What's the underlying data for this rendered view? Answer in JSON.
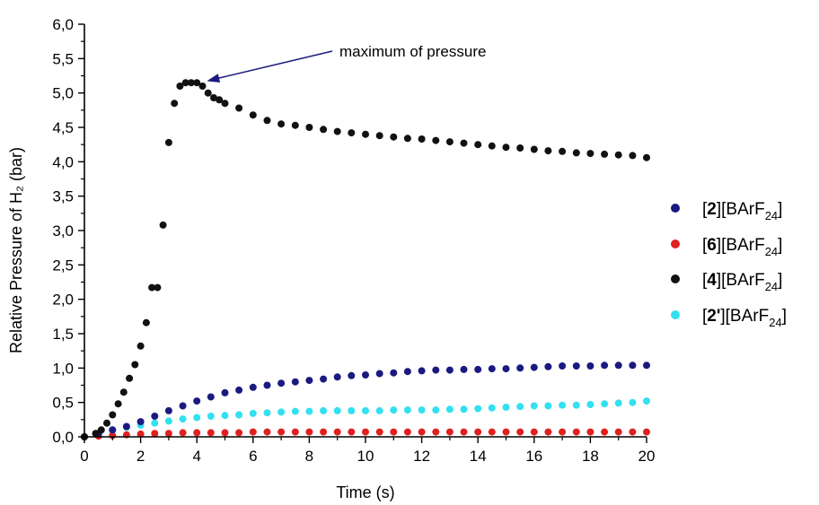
{
  "chart_data": {
    "type": "scatter",
    "title": "",
    "xlabel": "Time (s)",
    "ylabel": "Relative Pressure of H₂ (bar)",
    "xlim": [
      0,
      20
    ],
    "ylim": [
      0,
      6
    ],
    "x_ticks": [
      "0",
      "2",
      "4",
      "6",
      "8",
      "10",
      "12",
      "14",
      "16",
      "18",
      "20"
    ],
    "y_ticks": [
      "0,0",
      "0,5",
      "1,0",
      "1,5",
      "2,0",
      "2,5",
      "3,0",
      "3,5",
      "4,0",
      "4,5",
      "5,0",
      "5,5",
      "6,0"
    ],
    "grid": false,
    "legend_position": "right",
    "annotation": {
      "text": "maximum of pressure",
      "target": [
        4.1,
        5.2
      ]
    },
    "series": [
      {
        "name": "[2][BArF24]",
        "label_parts": [
          "[",
          "2",
          "][BArF",
          "24",
          "]"
        ],
        "color": "#1a1a80",
        "points": [
          [
            0,
            0.0
          ],
          [
            0.5,
            0.05
          ],
          [
            1,
            0.1
          ],
          [
            1.5,
            0.15
          ],
          [
            2,
            0.22
          ],
          [
            2.5,
            0.3
          ],
          [
            3,
            0.38
          ],
          [
            3.5,
            0.45
          ],
          [
            4,
            0.52
          ],
          [
            4.5,
            0.58
          ],
          [
            5,
            0.64
          ],
          [
            5.5,
            0.68
          ],
          [
            6,
            0.72
          ],
          [
            6.5,
            0.75
          ],
          [
            7,
            0.78
          ],
          [
            7.5,
            0.8
          ],
          [
            8,
            0.82
          ],
          [
            8.5,
            0.84
          ],
          [
            9,
            0.87
          ],
          [
            9.5,
            0.89
          ],
          [
            10,
            0.9
          ],
          [
            10.5,
            0.92
          ],
          [
            11,
            0.93
          ],
          [
            11.5,
            0.95
          ],
          [
            12,
            0.96
          ],
          [
            12.5,
            0.97
          ],
          [
            13,
            0.97
          ],
          [
            13.5,
            0.98
          ],
          [
            14,
            0.98
          ],
          [
            14.5,
            0.99
          ],
          [
            15,
            0.99
          ],
          [
            15.5,
            1.0
          ],
          [
            16,
            1.01
          ],
          [
            16.5,
            1.02
          ],
          [
            17,
            1.03
          ],
          [
            17.5,
            1.03
          ],
          [
            18,
            1.03
          ],
          [
            18.5,
            1.04
          ],
          [
            19,
            1.04
          ],
          [
            19.5,
            1.04
          ],
          [
            20,
            1.04
          ]
        ]
      },
      {
        "name": "[6][BArF24]",
        "label_parts": [
          "[",
          "6",
          "][BArF",
          "24",
          "]"
        ],
        "color": "#e02020",
        "points": [
          [
            0,
            0.0
          ],
          [
            0.5,
            0.01
          ],
          [
            1,
            0.02
          ],
          [
            1.5,
            0.03
          ],
          [
            2,
            0.04
          ],
          [
            2.5,
            0.05
          ],
          [
            3,
            0.05
          ],
          [
            3.5,
            0.06
          ],
          [
            4,
            0.06
          ],
          [
            4.5,
            0.06
          ],
          [
            5,
            0.06
          ],
          [
            5.5,
            0.06
          ],
          [
            6,
            0.07
          ],
          [
            6.5,
            0.07
          ],
          [
            7,
            0.07
          ],
          [
            7.5,
            0.07
          ],
          [
            8,
            0.07
          ],
          [
            8.5,
            0.07
          ],
          [
            9,
            0.07
          ],
          [
            9.5,
            0.07
          ],
          [
            10,
            0.07
          ],
          [
            10.5,
            0.07
          ],
          [
            11,
            0.07
          ],
          [
            11.5,
            0.07
          ],
          [
            12,
            0.07
          ],
          [
            12.5,
            0.07
          ],
          [
            13,
            0.07
          ],
          [
            13.5,
            0.07
          ],
          [
            14,
            0.07
          ],
          [
            14.5,
            0.07
          ],
          [
            15,
            0.07
          ],
          [
            15.5,
            0.07
          ],
          [
            16,
            0.07
          ],
          [
            16.5,
            0.07
          ],
          [
            17,
            0.07
          ],
          [
            17.5,
            0.07
          ],
          [
            18,
            0.07
          ],
          [
            18.5,
            0.07
          ],
          [
            19,
            0.07
          ],
          [
            19.5,
            0.07
          ],
          [
            20,
            0.07
          ]
        ]
      },
      {
        "name": "[4][BArF24]",
        "label_parts": [
          "[",
          "4",
          "][BArF",
          "24",
          "]"
        ],
        "color": "#111111",
        "points": [
          [
            0,
            0.0
          ],
          [
            0.4,
            0.05
          ],
          [
            0.6,
            0.1
          ],
          [
            0.8,
            0.2
          ],
          [
            1,
            0.32
          ],
          [
            1.2,
            0.48
          ],
          [
            1.4,
            0.65
          ],
          [
            1.6,
            0.85
          ],
          [
            1.8,
            1.05
          ],
          [
            2,
            1.32
          ],
          [
            2.2,
            1.66
          ],
          [
            2.4,
            2.17
          ],
          [
            2.6,
            2.17
          ],
          [
            2.8,
            3.08
          ],
          [
            3,
            4.28
          ],
          [
            3.2,
            4.85
          ],
          [
            3.4,
            5.1
          ],
          [
            3.6,
            5.15
          ],
          [
            3.8,
            5.15
          ],
          [
            4,
            5.15
          ],
          [
            4.2,
            5.1
          ],
          [
            4.4,
            5.0
          ],
          [
            4.6,
            4.93
          ],
          [
            4.8,
            4.9
          ],
          [
            5,
            4.85
          ],
          [
            5.5,
            4.78
          ],
          [
            6,
            4.68
          ],
          [
            6.5,
            4.6
          ],
          [
            7,
            4.55
          ],
          [
            7.5,
            4.53
          ],
          [
            8,
            4.5
          ],
          [
            8.5,
            4.47
          ],
          [
            9,
            4.44
          ],
          [
            9.5,
            4.42
          ],
          [
            10,
            4.4
          ],
          [
            10.5,
            4.38
          ],
          [
            11,
            4.36
          ],
          [
            11.5,
            4.34
          ],
          [
            12,
            4.33
          ],
          [
            12.5,
            4.31
          ],
          [
            13,
            4.29
          ],
          [
            13.5,
            4.27
          ],
          [
            14,
            4.25
          ],
          [
            14.5,
            4.23
          ],
          [
            15,
            4.21
          ],
          [
            15.5,
            4.2
          ],
          [
            16,
            4.18
          ],
          [
            16.5,
            4.16
          ],
          [
            17,
            4.15
          ],
          [
            17.5,
            4.13
          ],
          [
            18,
            4.12
          ],
          [
            18.5,
            4.11
          ],
          [
            19,
            4.1
          ],
          [
            19.5,
            4.09
          ],
          [
            20,
            4.06
          ]
        ]
      },
      {
        "name": "[2'][BArF24]",
        "label_parts": [
          "[",
          "2'",
          "][BArF",
          "24",
          "]"
        ],
        "color": "#33e0f0",
        "points": [
          [
            0,
            0.0
          ],
          [
            0.5,
            0.05
          ],
          [
            1,
            0.1
          ],
          [
            1.5,
            0.14
          ],
          [
            2,
            0.17
          ],
          [
            2.5,
            0.2
          ],
          [
            3,
            0.23
          ],
          [
            3.5,
            0.26
          ],
          [
            4,
            0.28
          ],
          [
            4.5,
            0.3
          ],
          [
            5,
            0.31
          ],
          [
            5.5,
            0.32
          ],
          [
            6,
            0.34
          ],
          [
            6.5,
            0.35
          ],
          [
            7,
            0.36
          ],
          [
            7.5,
            0.37
          ],
          [
            8,
            0.37
          ],
          [
            8.5,
            0.38
          ],
          [
            9,
            0.38
          ],
          [
            9.5,
            0.38
          ],
          [
            10,
            0.38
          ],
          [
            10.5,
            0.38
          ],
          [
            11,
            0.39
          ],
          [
            11.5,
            0.39
          ],
          [
            12,
            0.39
          ],
          [
            12.5,
            0.39
          ],
          [
            13,
            0.4
          ],
          [
            13.5,
            0.4
          ],
          [
            14,
            0.41
          ],
          [
            14.5,
            0.42
          ],
          [
            15,
            0.43
          ],
          [
            15.5,
            0.44
          ],
          [
            16,
            0.45
          ],
          [
            16.5,
            0.45
          ],
          [
            17,
            0.46
          ],
          [
            17.5,
            0.46
          ],
          [
            18,
            0.47
          ],
          [
            18.5,
            0.48
          ],
          [
            19,
            0.49
          ],
          [
            19.5,
            0.5
          ],
          [
            20,
            0.52
          ]
        ]
      }
    ]
  }
}
